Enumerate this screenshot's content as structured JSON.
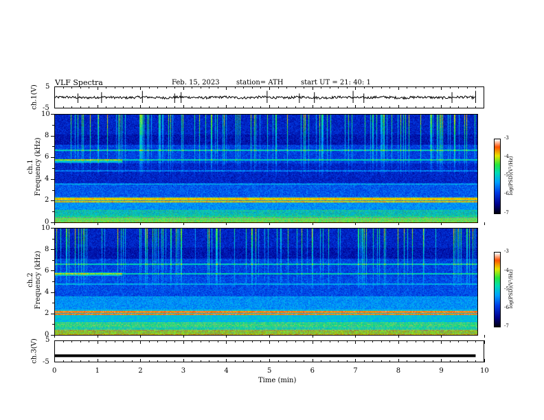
{
  "header": {
    "title": "VLF  Spectra",
    "date": "Feb. 15, 2023",
    "station": "station= ATH",
    "start": "start  UT  =    21: 40: 1"
  },
  "chart_data": [
    {
      "type": "line",
      "panel": "ch.1",
      "ylabel": "ch.1(V)",
      "ylim": [
        -5,
        5
      ],
      "yticks": [
        "5",
        "-5"
      ],
      "xlim": [
        0,
        10
      ],
      "baseline_value": 0,
      "noise_amplitude": 0.7,
      "spikes_x": [
        0.55,
        1.1,
        2.05,
        2.8,
        2.95,
        4.95,
        5.7,
        6.05,
        6.95,
        7.2,
        9.25,
        9.8
      ]
    },
    {
      "type": "heatmap",
      "panel": "ch.1",
      "ylabel": "ch.1\nFrequency (kHz)",
      "ylim": [
        0,
        10
      ],
      "yticks": [
        "0",
        "2",
        "4",
        "6",
        "8",
        "10"
      ],
      "xlim": [
        0,
        9.8
      ],
      "colorbar": {
        "label": "log(PSD)(V²/Hz)",
        "range": [
          -7,
          -3
        ],
        "ticks": [
          "-3",
          "-4",
          "-5",
          "-6",
          "-7"
        ]
      }
    },
    {
      "type": "heatmap",
      "panel": "ch.2",
      "ylabel": "ch.2\nFrequency (kHz)",
      "ylim": [
        0,
        10
      ],
      "yticks": [
        "0",
        "2",
        "4",
        "6",
        "8",
        "10"
      ],
      "xlim": [
        0,
        9.8
      ],
      "colorbar": {
        "label": "log(PSD)(V²/Hz)",
        "range": [
          -7,
          -3
        ],
        "ticks": [
          "-3",
          "-4",
          "-5",
          "-6",
          "-7"
        ]
      }
    },
    {
      "type": "line",
      "panel": "ch.3",
      "ylabel": "ch.3(V)",
      "ylim": [
        -5,
        5
      ],
      "yticks": [
        "5",
        "-5"
      ],
      "xlim": [
        0,
        10
      ],
      "constant_value": -2
    }
  ],
  "xaxis": {
    "label": "Time  (min)",
    "ticks": [
      "0",
      "1",
      "2",
      "3",
      "4",
      "5",
      "6",
      "7",
      "8",
      "9",
      "10"
    ]
  },
  "colors": {
    "background": "#ffffff",
    "axis": "#000000"
  }
}
